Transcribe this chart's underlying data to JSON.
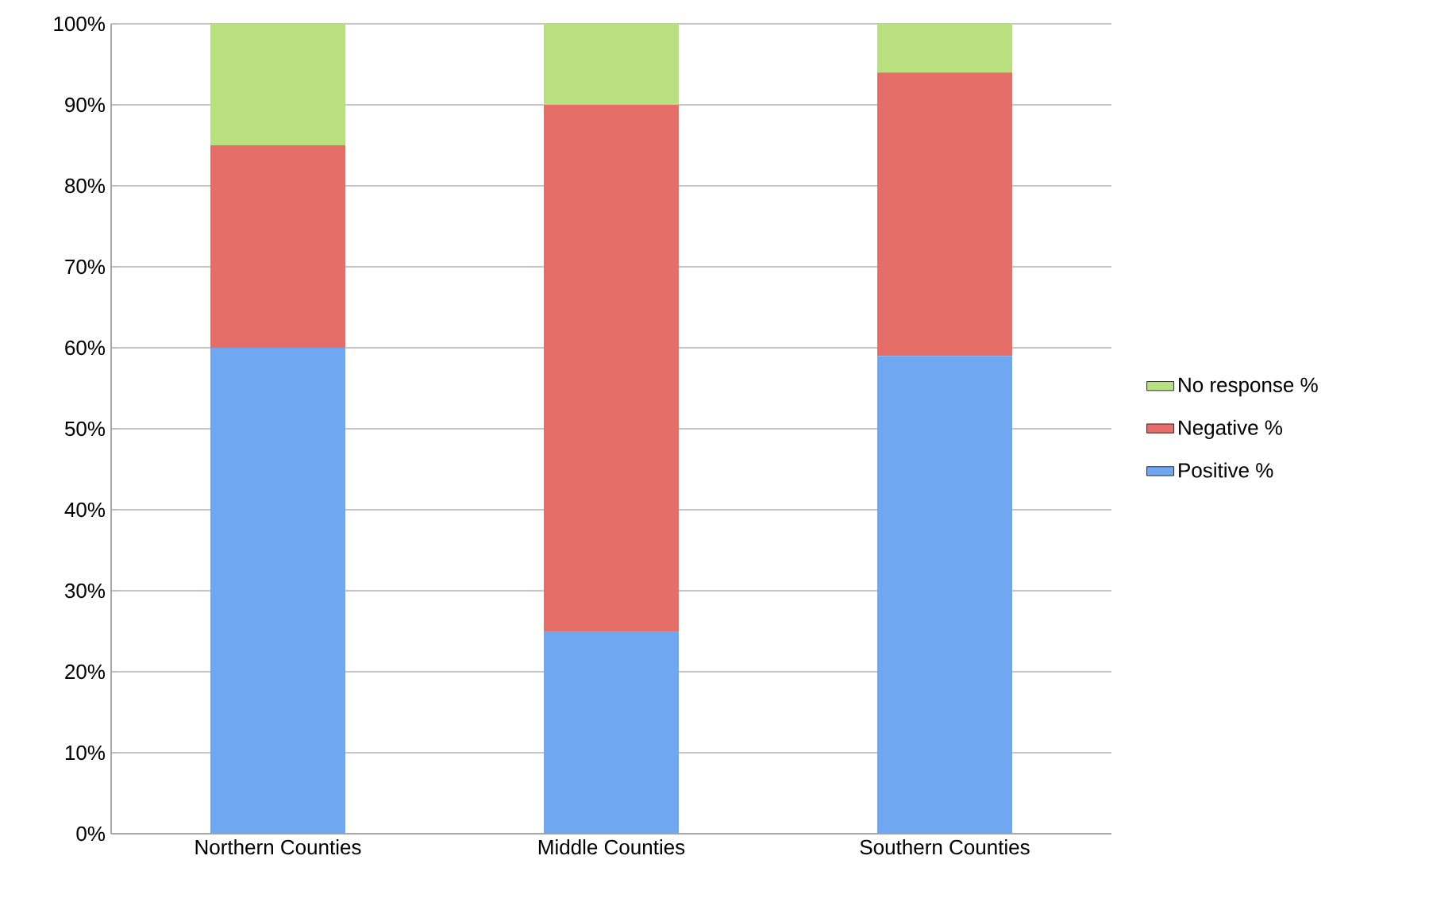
{
  "chart_data": {
    "type": "bar",
    "stacked": true,
    "categories": [
      "Northern Counties",
      "Middle Counties",
      "Southern Counties"
    ],
    "series": [
      {
        "name": "Positive %",
        "color": "#6fa8f0",
        "values": [
          60,
          25,
          59
        ]
      },
      {
        "name": "Negative %",
        "color": "#e56e69",
        "values": [
          25,
          65,
          35
        ]
      },
      {
        "name": "No response %",
        "color": "#b8df80",
        "values": [
          15,
          10,
          6
        ]
      }
    ],
    "ylim": [
      0,
      100
    ],
    "yticks": [
      {
        "value": 0,
        "label": "0%"
      },
      {
        "value": 10,
        "label": "10%"
      },
      {
        "value": 20,
        "label": "20%"
      },
      {
        "value": 30,
        "label": "30%"
      },
      {
        "value": 40,
        "label": "40%"
      },
      {
        "value": 50,
        "label": "50%"
      },
      {
        "value": 60,
        "label": "60%"
      },
      {
        "value": 70,
        "label": "70%"
      },
      {
        "value": 80,
        "label": "80%"
      },
      {
        "value": 90,
        "label": "90%"
      },
      {
        "value": 100,
        "label": "100%"
      }
    ],
    "grid": "y",
    "legend": "right"
  }
}
